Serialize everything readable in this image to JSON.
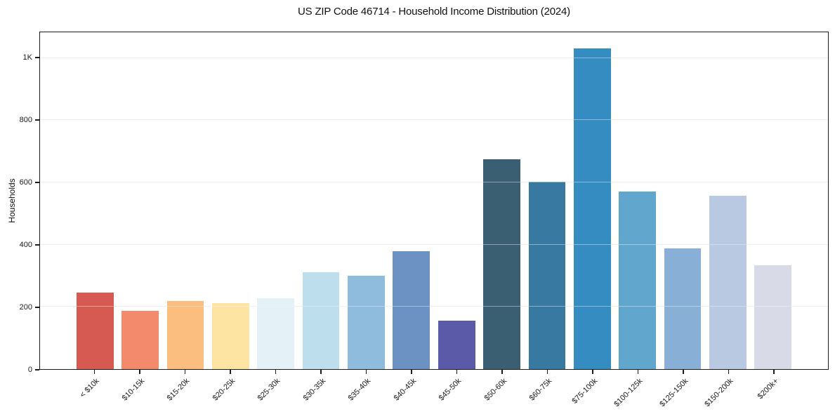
{
  "chart_data": {
    "type": "bar",
    "title": "US ZIP Code 46714 - Household Income Distribution (2024)",
    "xlabel": "",
    "ylabel": "Households",
    "categories": [
      "< $10k",
      "$10-15k",
      "$15-20k",
      "$20-25k",
      "$25-30k",
      "$30-35k",
      "$35-40k",
      "$40-45k",
      "$45-50k",
      "$50-60k",
      "$60-75k",
      "$75-100k",
      "$100-125k",
      "$125-150k",
      "$150-200k",
      "$200k+"
    ],
    "values": [
      245,
      187,
      220,
      211,
      229,
      312,
      299,
      379,
      155,
      675,
      602,
      1031,
      571,
      388,
      558,
      333
    ],
    "bar_colors": [
      "#d65a52",
      "#f48a6c",
      "#fcbe7e",
      "#fde4a3",
      "#e4f2f7",
      "#bcdeed",
      "#8fbbdc",
      "#6b92c3",
      "#5a5aa8",
      "#3a5f72",
      "#3779a0",
      "#358cc0",
      "#61a6cd",
      "#88b0d7",
      "#bac9e2",
      "#d9dae7"
    ],
    "ylim": [
      0,
      1083
    ],
    "yticks": [
      {
        "value": 0,
        "label": "0"
      },
      {
        "value": 200,
        "label": "200"
      },
      {
        "value": 400,
        "label": "400"
      },
      {
        "value": 600,
        "label": "600"
      },
      {
        "value": 800,
        "label": "800"
      },
      {
        "value": 1000,
        "label": "1K"
      }
    ],
    "grid": "horizontal",
    "legend": "none",
    "background_color": "#ffffff",
    "spine_color": "#1c1c1c",
    "grid_color": "#e9e9ef"
  }
}
